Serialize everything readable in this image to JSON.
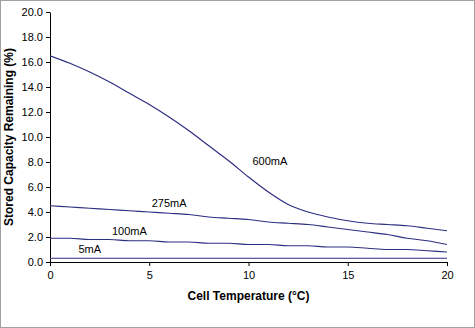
{
  "chart_data": {
    "type": "line",
    "x_label": "Cell Temperature (°C)",
    "y_label": "Stored Capacity Remaining (%)",
    "x": [
      0,
      1,
      2,
      3,
      4,
      5,
      6,
      7,
      8,
      9,
      10,
      11,
      12,
      13,
      14,
      15,
      16,
      17,
      18,
      19,
      20
    ],
    "series": [
      {
        "name": "600mA",
        "color": "#2e2e82",
        "values": [
          16.5,
          15.9,
          15.2,
          14.4,
          13.5,
          12.6,
          11.6,
          10.5,
          9.3,
          8.1,
          6.8,
          5.6,
          4.6,
          4.0,
          3.6,
          3.3,
          3.1,
          3.0,
          2.9,
          2.7,
          2.5
        ]
      },
      {
        "name": "275mA",
        "color": "#2e2e82",
        "values": [
          4.5,
          4.4,
          4.3,
          4.2,
          4.1,
          4.0,
          3.9,
          3.8,
          3.6,
          3.5,
          3.4,
          3.2,
          3.1,
          3.0,
          2.8,
          2.6,
          2.4,
          2.2,
          1.9,
          1.7,
          1.4
        ]
      },
      {
        "name": "100mA",
        "color": "#2e2e82",
        "values": [
          1.9,
          1.9,
          1.8,
          1.8,
          1.7,
          1.7,
          1.6,
          1.6,
          1.5,
          1.5,
          1.4,
          1.4,
          1.3,
          1.3,
          1.2,
          1.2,
          1.1,
          1.0,
          1.0,
          0.9,
          0.8
        ]
      },
      {
        "name": "5mA",
        "color": "#2e2e82",
        "values": [
          0.3,
          0.3,
          0.3,
          0.3,
          0.3,
          0.3,
          0.3,
          0.3,
          0.3,
          0.3,
          0.3,
          0.3,
          0.3,
          0.3,
          0.3,
          0.3,
          0.3,
          0.3,
          0.3,
          0.3,
          0.3
        ]
      }
    ],
    "xlim": [
      0,
      20
    ],
    "xticks": [
      0,
      5,
      10,
      15,
      20
    ],
    "ylim": [
      0,
      20
    ],
    "yticks": [
      {
        "value": 0,
        "label": "0.0"
      },
      {
        "value": 2,
        "label": "2.0"
      },
      {
        "value": 4,
        "label": "4.0"
      },
      {
        "value": 6,
        "label": "6.0"
      },
      {
        "value": 8,
        "label": "8.0"
      },
      {
        "value": 10,
        "label": "10.0"
      },
      {
        "value": 12,
        "label": "12.0"
      },
      {
        "value": 14,
        "label": "14.0"
      },
      {
        "value": 16,
        "label": "16.0"
      },
      {
        "value": 18,
        "label": "18.0"
      },
      {
        "value": 20,
        "label": "20.0"
      }
    ],
    "grid": false
  }
}
